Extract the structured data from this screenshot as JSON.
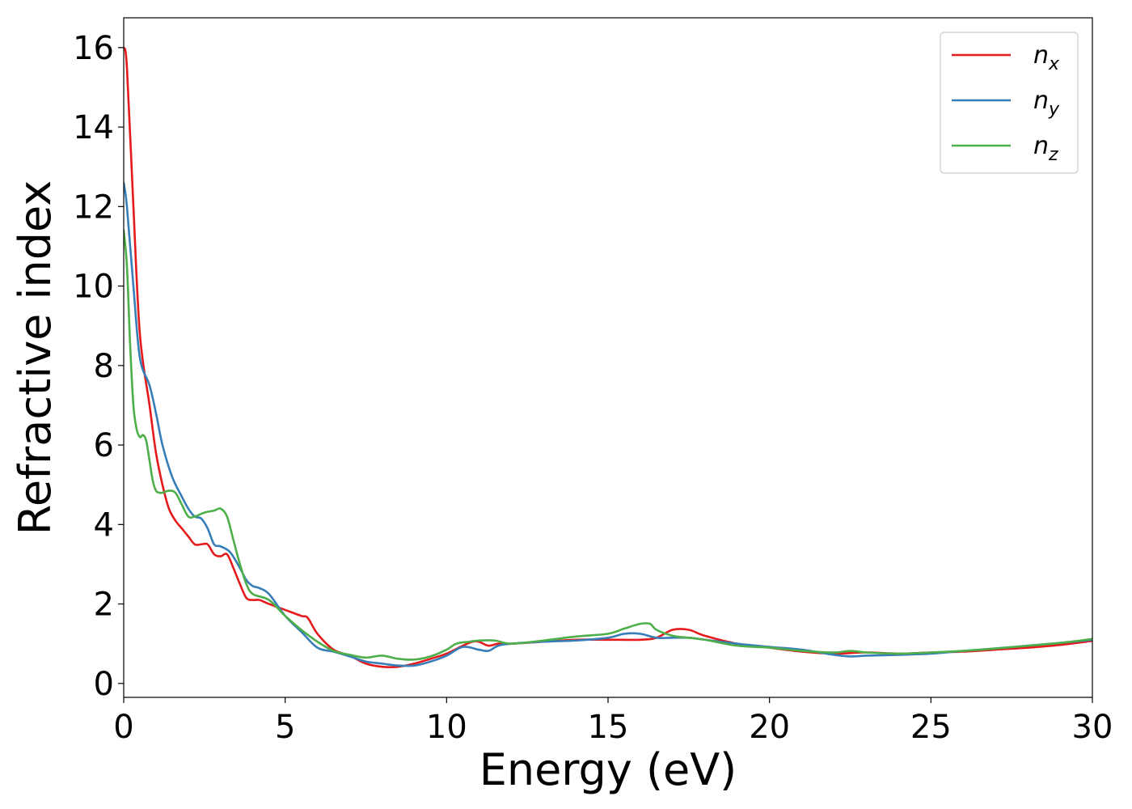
{
  "chart_data": {
    "type": "line",
    "title": "",
    "xlabel": "Energy (eV)",
    "ylabel": "Refractive index",
    "xlim": [
      0,
      30
    ],
    "ylim": [
      -0.35,
      16.75
    ],
    "xticks": [
      0,
      5,
      10,
      15,
      20,
      25,
      30
    ],
    "yticks": [
      0,
      2,
      4,
      6,
      8,
      10,
      12,
      14,
      16
    ],
    "grid": false,
    "legend_position": "top-right",
    "series": [
      {
        "name": "n",
        "subscript": "x",
        "color": "#e41a1c",
        "x": [
          0,
          0.1,
          0.3,
          0.5,
          0.8,
          1.0,
          1.2,
          1.4,
          1.6,
          1.8,
          2.0,
          2.2,
          2.4,
          2.6,
          2.8,
          3.0,
          3.2,
          3.4,
          3.6,
          3.8,
          4.0,
          4.2,
          4.5,
          5.0,
          5.5,
          5.7,
          6.0,
          6.5,
          7.0,
          7.5,
          8.0,
          8.5,
          9.0,
          9.5,
          10.0,
          10.5,
          10.8,
          11.0,
          11.3,
          11.6,
          12.0,
          13.0,
          14.0,
          15.0,
          16.0,
          16.5,
          17.0,
          17.5,
          18.0,
          19.0,
          20.0,
          21.0,
          22.0,
          23.0,
          24.0,
          25.0,
          26.0,
          27.0,
          28.0,
          29.0,
          30.0
        ],
        "values": [
          16.0,
          15.5,
          12.0,
          8.8,
          7.0,
          5.8,
          5.0,
          4.4,
          4.1,
          3.9,
          3.7,
          3.5,
          3.5,
          3.5,
          3.25,
          3.2,
          3.25,
          2.9,
          2.5,
          2.15,
          2.1,
          2.1,
          2.0,
          1.85,
          1.7,
          1.65,
          1.25,
          0.85,
          0.7,
          0.5,
          0.42,
          0.42,
          0.5,
          0.62,
          0.75,
          0.95,
          1.05,
          1.05,
          0.95,
          1.0,
          1.0,
          1.05,
          1.1,
          1.1,
          1.1,
          1.15,
          1.35,
          1.35,
          1.2,
          1.0,
          0.9,
          0.8,
          0.75,
          0.78,
          0.75,
          0.78,
          0.8,
          0.85,
          0.9,
          0.97,
          1.07
        ]
      },
      {
        "name": "n",
        "subscript": "y",
        "color": "#377eb8",
        "x": [
          0,
          0.1,
          0.3,
          0.5,
          0.8,
          1.0,
          1.2,
          1.5,
          1.8,
          2.0,
          2.2,
          2.4,
          2.6,
          2.8,
          3.0,
          3.3,
          3.6,
          3.8,
          4.0,
          4.2,
          4.5,
          5.0,
          5.5,
          6.0,
          6.5,
          7.0,
          7.5,
          8.0,
          8.5,
          9.0,
          9.5,
          10.0,
          10.5,
          11.0,
          11.3,
          11.6,
          12.0,
          13.0,
          14.0,
          15.0,
          15.5,
          16.0,
          16.5,
          17.0,
          17.5,
          18.0,
          19.0,
          20.0,
          21.0,
          22.0,
          22.5,
          23.0,
          24.0,
          25.0,
          26.0,
          27.0,
          28.0,
          29.0,
          30.0
        ],
        "values": [
          12.6,
          12.0,
          10.0,
          8.2,
          7.5,
          6.8,
          6.0,
          5.2,
          4.7,
          4.4,
          4.2,
          4.15,
          3.9,
          3.5,
          3.45,
          3.3,
          2.9,
          2.6,
          2.45,
          2.4,
          2.25,
          1.7,
          1.3,
          0.9,
          0.8,
          0.68,
          0.55,
          0.5,
          0.45,
          0.45,
          0.55,
          0.7,
          0.92,
          0.85,
          0.82,
          0.95,
          1.0,
          1.05,
          1.08,
          1.15,
          1.25,
          1.25,
          1.15,
          1.15,
          1.15,
          1.1,
          1.0,
          0.92,
          0.85,
          0.72,
          0.68,
          0.7,
          0.72,
          0.75,
          0.82,
          0.88,
          0.95,
          1.02,
          1.1
        ]
      },
      {
        "name": "n",
        "subscript": "z",
        "color": "#4daf4a",
        "x": [
          0,
          0.1,
          0.2,
          0.3,
          0.4,
          0.5,
          0.6,
          0.7,
          0.8,
          0.9,
          1.0,
          1.1,
          1.2,
          1.4,
          1.6,
          1.8,
          2.0,
          2.2,
          2.5,
          2.8,
          3.0,
          3.2,
          3.4,
          3.6,
          3.8,
          4.0,
          4.5,
          5.0,
          5.5,
          6.0,
          6.5,
          7.0,
          7.5,
          8.0,
          8.5,
          9.0,
          9.5,
          10.0,
          10.3,
          10.7,
          11.0,
          11.5,
          12.0,
          13.0,
          14.0,
          15.0,
          15.5,
          16.0,
          16.3,
          16.5,
          17.0,
          17.5,
          18.0,
          19.0,
          20.0,
          21.0,
          22.0,
          22.5,
          23.0,
          24.0,
          25.0,
          26.0,
          27.0,
          28.0,
          29.0,
          30.0
        ],
        "values": [
          11.4,
          10.5,
          8.5,
          7.0,
          6.4,
          6.2,
          6.25,
          6.1,
          5.6,
          5.1,
          4.85,
          4.8,
          4.8,
          4.85,
          4.8,
          4.5,
          4.2,
          4.2,
          4.3,
          4.35,
          4.4,
          4.2,
          3.6,
          3.0,
          2.5,
          2.25,
          2.1,
          1.7,
          1.35,
          1.05,
          0.82,
          0.72,
          0.65,
          0.7,
          0.62,
          0.6,
          0.68,
          0.85,
          1.0,
          1.05,
          1.08,
          1.08,
          1.0,
          1.08,
          1.18,
          1.25,
          1.38,
          1.5,
          1.5,
          1.35,
          1.2,
          1.15,
          1.1,
          0.95,
          0.9,
          0.82,
          0.78,
          0.82,
          0.78,
          0.75,
          0.78,
          0.82,
          0.88,
          0.95,
          1.02,
          1.12
        ]
      }
    ]
  }
}
